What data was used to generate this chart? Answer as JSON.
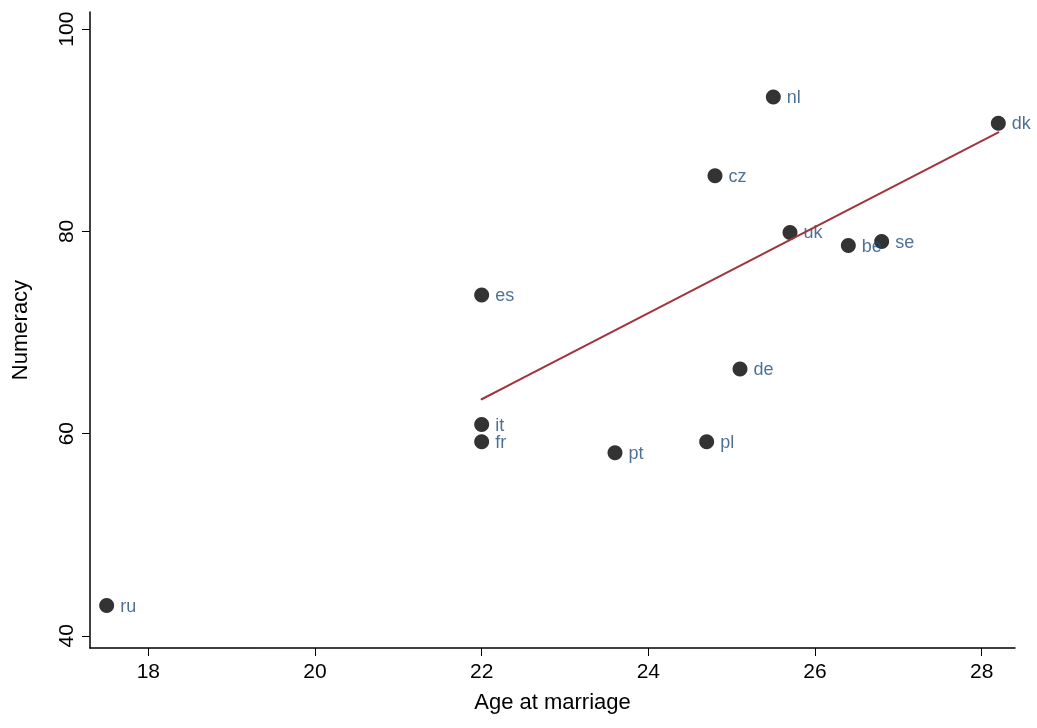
{
  "chart_data": {
    "type": "scatter",
    "xlabel": "Age at marriage",
    "ylabel": "Numeracy",
    "xlim": [
      17.3,
      28.4
    ],
    "xticks": [
      18,
      20,
      22,
      24,
      26,
      28
    ],
    "ylim": [
      38.8,
      101.7
    ],
    "yticks": [
      40,
      60,
      80,
      100
    ],
    "grid": false,
    "marker": "circle",
    "series": [
      {
        "color": "#000000",
        "x": [
          17.5,
          22.0,
          22.0,
          22.0,
          23.6,
          24.7,
          25.1,
          24.8,
          25.5,
          25.7,
          26.4,
          26.8,
          28.2
        ],
        "values": [
          43.0,
          60.9,
          59.2,
          73.7,
          58.1,
          59.2,
          66.4,
          85.5,
          93.3,
          79.9,
          78.6,
          79.0,
          90.7
        ],
        "value_labels": [
          "ru",
          "it",
          "fr",
          "es",
          "pt",
          "pl",
          "de",
          "cz",
          "nl",
          "uk",
          "be",
          "se",
          "dk"
        ]
      },
      {
        "type": "line",
        "color": "#a0343c",
        "marker": "none",
        "line_style": "solid",
        "x": [
          22.0,
          28.2
        ],
        "values": [
          63.4,
          89.8
        ]
      }
    ]
  }
}
